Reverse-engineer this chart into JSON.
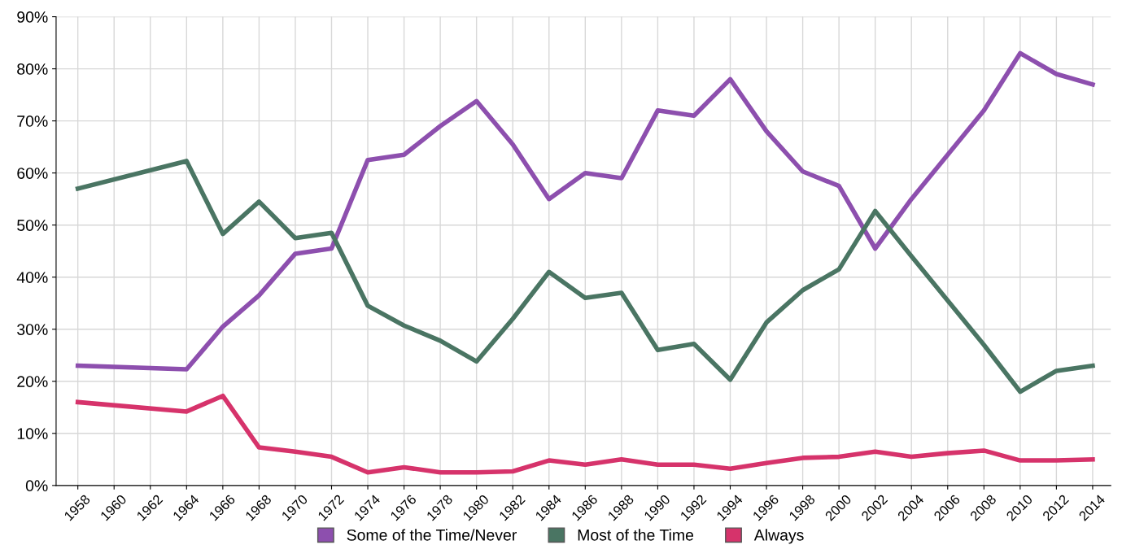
{
  "chart_data": {
    "type": "line",
    "x": [
      1958,
      1964,
      1966,
      1968,
      1970,
      1972,
      1974,
      1976,
      1978,
      1980,
      1982,
      1984,
      1986,
      1988,
      1990,
      1992,
      1994,
      1996,
      1998,
      2000,
      2002,
      2004,
      2006,
      2008,
      2010,
      2012,
      2014
    ],
    "series": [
      {
        "name": "Some of the Time/Never",
        "color": "#8d4fae",
        "values": [
          23,
          22.3,
          30.5,
          36.5,
          44.5,
          45.5,
          62.5,
          63.5,
          69,
          73.8,
          65.5,
          55,
          60,
          59,
          72,
          71,
          78,
          68,
          60.3,
          57.5,
          45.5,
          55,
          63.5,
          72,
          83,
          79,
          77
        ]
      },
      {
        "name": "Most of the Time",
        "color": "#4a7563",
        "values": [
          57,
          62.3,
          48.3,
          54.5,
          47.5,
          48.5,
          34.5,
          30.7,
          27.8,
          23.8,
          32,
          41,
          36,
          37,
          26,
          27.2,
          20.3,
          31.3,
          37.5,
          41.5,
          52.7,
          44,
          35.5,
          27,
          18,
          22,
          23
        ]
      },
      {
        "name": "Always",
        "color": "#d6336b",
        "values": [
          16,
          14.2,
          17.2,
          7.3,
          6.5,
          5.5,
          2.5,
          3.5,
          2.5,
          2.5,
          2.7,
          4.8,
          4,
          5,
          4,
          4,
          3.2,
          4.3,
          5.3,
          5.5,
          6.5,
          5.5,
          6.2,
          6.7,
          4.8,
          4.8,
          5
        ]
      }
    ],
    "xlim": [
      1956.8,
      2015
    ],
    "xticks": [
      1958,
      1960,
      1962,
      1964,
      1966,
      1968,
      1970,
      1972,
      1974,
      1976,
      1978,
      1980,
      1982,
      1984,
      1986,
      1988,
      1990,
      1992,
      1994,
      1996,
      1998,
      2000,
      2002,
      2004,
      2006,
      2008,
      2010,
      2012,
      2014
    ],
    "ylim": [
      0,
      90
    ],
    "yticks": [
      {
        "value": 0,
        "label": "0%"
      },
      {
        "value": 10,
        "label": "10%"
      },
      {
        "value": 20,
        "label": "20%"
      },
      {
        "value": 30,
        "label": "30%"
      },
      {
        "value": 40,
        "label": "40%"
      },
      {
        "value": 50,
        "label": "50%"
      },
      {
        "value": 60,
        "label": "60%"
      },
      {
        "value": 70,
        "label": "70%"
      },
      {
        "value": 80,
        "label": "80%"
      },
      {
        "value": 90,
        "label": "90%"
      }
    ],
    "grid": true,
    "legend": "bottom",
    "marker": "none",
    "line_style": "solid"
  }
}
